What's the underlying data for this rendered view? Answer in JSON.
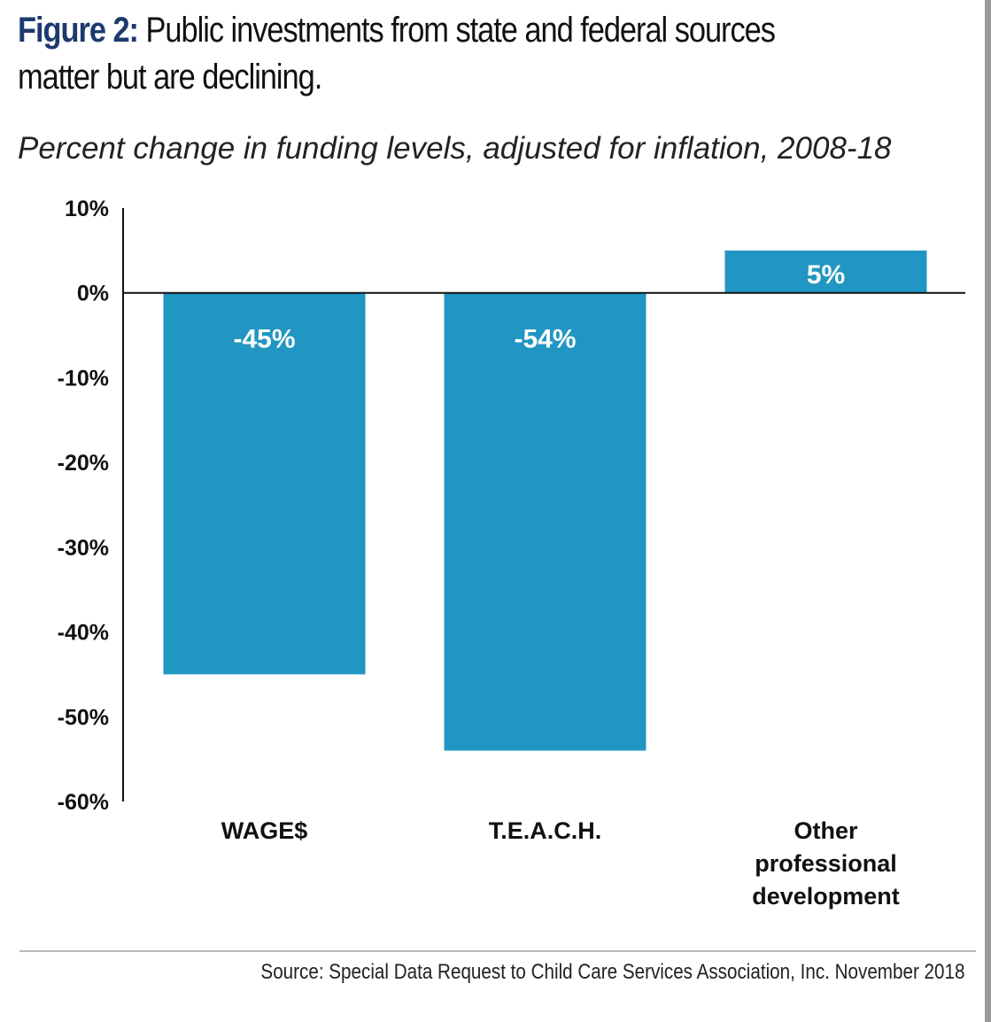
{
  "figure_label": "Figure 2:",
  "figure_title": "Public investments from state and federal sources matter but are declining.",
  "subtitle": "Percent change in funding levels, adjusted for inflation, 2008-18",
  "source": "Source:  Special Data Request to Child Care Services Association, Inc. November 2018",
  "colors": {
    "bar": "#2196c2",
    "label_inside": "#ffffff",
    "axis": "#111111",
    "title_lead": "#1d3a6e"
  },
  "chart_data": {
    "type": "bar",
    "categories": [
      "WAGE$",
      "T.E.A.C.H.",
      "Other professional development"
    ],
    "category_lines": [
      [
        "WAGE$"
      ],
      [
        "T.E.A.C.H."
      ],
      [
        "Other",
        "professional",
        "development"
      ]
    ],
    "values": [
      -45,
      -54,
      5
    ],
    "data_labels": [
      "-45%",
      "-54%",
      "5%"
    ],
    "ylim": [
      -60,
      10
    ],
    "yticks": [
      10,
      0,
      -10,
      -20,
      -30,
      -40,
      -50,
      -60
    ],
    "ytick_labels": [
      "10%",
      "0%",
      "-10%",
      "-20%",
      "-30%",
      "-40%",
      "-50%",
      "-60%"
    ],
    "grid": false,
    "legend": "none"
  }
}
